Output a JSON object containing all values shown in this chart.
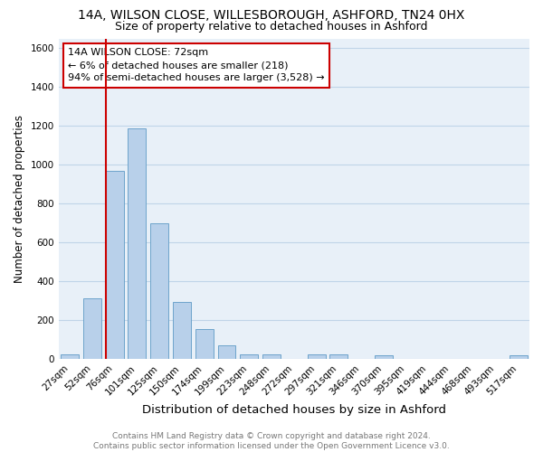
{
  "title1": "14A, WILSON CLOSE, WILLESBOROUGH, ASHFORD, TN24 0HX",
  "title2": "Size of property relative to detached houses in Ashford",
  "xlabel": "Distribution of detached houses by size in Ashford",
  "ylabel": "Number of detached properties",
  "categories": [
    "27sqm",
    "52sqm",
    "76sqm",
    "101sqm",
    "125sqm",
    "150sqm",
    "174sqm",
    "199sqm",
    "223sqm",
    "248sqm",
    "272sqm",
    "297sqm",
    "321sqm",
    "346sqm",
    "370sqm",
    "395sqm",
    "419sqm",
    "444sqm",
    "468sqm",
    "493sqm",
    "517sqm"
  ],
  "values": [
    25,
    310,
    970,
    1185,
    700,
    295,
    155,
    70,
    25,
    25,
    0,
    25,
    25,
    0,
    20,
    0,
    0,
    0,
    0,
    0,
    20
  ],
  "bar_color": "#b8d0ea",
  "bar_edge_color": "#6da4cb",
  "property_line_color": "#cc0000",
  "annotation_line1": "14A WILSON CLOSE: 72sqm",
  "annotation_line2": "← 6% of detached houses are smaller (218)",
  "annotation_line3": "94% of semi-detached houses are larger (3,528) →",
  "annotation_box_color": "#ffffff",
  "annotation_box_edge_color": "#cc0000",
  "ylim": [
    0,
    1650
  ],
  "yticks": [
    0,
    200,
    400,
    600,
    800,
    1000,
    1200,
    1400,
    1600
  ],
  "grid_color": "#c0d4e8",
  "bg_color": "#e8f0f8",
  "footer_text": "Contains HM Land Registry data © Crown copyright and database right 2024.\nContains public sector information licensed under the Open Government Licence v3.0.",
  "title1_fontsize": 10,
  "title2_fontsize": 9,
  "xlabel_fontsize": 9.5,
  "ylabel_fontsize": 8.5,
  "tick_fontsize": 7.5,
  "annotation_fontsize": 8,
  "footer_fontsize": 6.5
}
